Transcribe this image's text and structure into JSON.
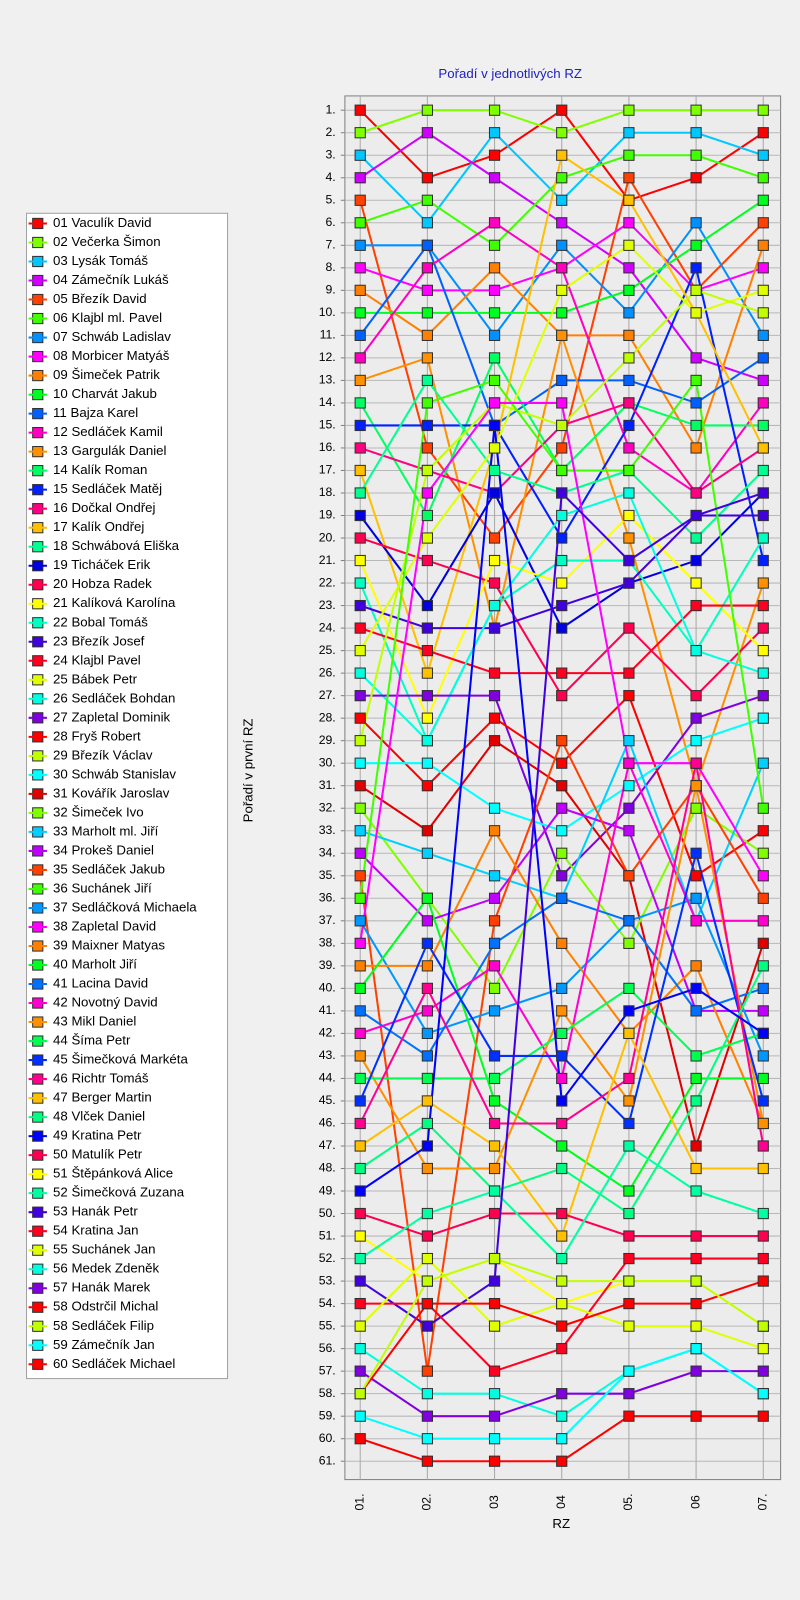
{
  "chart_data": {
    "type": "line",
    "title": "Pořadí v jednotlivých RZ",
    "x_label": "RZ",
    "y_label": "Pořadí v první RZ",
    "y_inverted": true,
    "grid": true,
    "legend": "left",
    "categories": [
      "01.",
      "02.",
      "03",
      "04",
      "05.",
      "06",
      "07."
    ],
    "ylim": [
      1,
      61
    ],
    "yticks": [
      {
        "value": 1,
        "label": "1."
      },
      {
        "value": 2,
        "label": "2."
      },
      {
        "value": 3,
        "label": "3."
      },
      {
        "value": 4,
        "label": "4."
      },
      {
        "value": 5,
        "label": "5."
      },
      {
        "value": 6,
        "label": "6."
      },
      {
        "value": 7,
        "label": "7."
      },
      {
        "value": 8,
        "label": "8."
      },
      {
        "value": 9,
        "label": "9."
      },
      {
        "value": 10,
        "label": "10."
      },
      {
        "value": 11,
        "label": "11."
      },
      {
        "value": 12,
        "label": "12."
      },
      {
        "value": 13,
        "label": "13."
      },
      {
        "value": 14,
        "label": "14."
      },
      {
        "value": 15,
        "label": "15."
      },
      {
        "value": 16,
        "label": "16."
      },
      {
        "value": 17,
        "label": "17."
      },
      {
        "value": 18,
        "label": "18."
      },
      {
        "value": 19,
        "label": "19."
      },
      {
        "value": 20,
        "label": "20."
      },
      {
        "value": 21,
        "label": "21."
      },
      {
        "value": 22,
        "label": "22."
      },
      {
        "value": 23,
        "label": "23."
      },
      {
        "value": 24,
        "label": "24."
      },
      {
        "value": 25,
        "label": "25."
      },
      {
        "value": 26,
        "label": "26."
      },
      {
        "value": 27,
        "label": "27."
      },
      {
        "value": 28,
        "label": "28."
      },
      {
        "value": 29,
        "label": "29."
      },
      {
        "value": 30,
        "label": "30."
      },
      {
        "value": 31,
        "label": "31."
      },
      {
        "value": 32,
        "label": "32."
      },
      {
        "value": 33,
        "label": "33."
      },
      {
        "value": 34,
        "label": "34."
      },
      {
        "value": 35,
        "label": "35."
      },
      {
        "value": 36,
        "label": "36."
      },
      {
        "value": 37,
        "label": "37."
      },
      {
        "value": 38,
        "label": "38."
      },
      {
        "value": 39,
        "label": "39."
      },
      {
        "value": 40,
        "label": "40."
      },
      {
        "value": 41,
        "label": "41."
      },
      {
        "value": 42,
        "label": "42."
      },
      {
        "value": 43,
        "label": "43."
      },
      {
        "value": 44,
        "label": "44."
      },
      {
        "value": 45,
        "label": "45."
      },
      {
        "value": 46,
        "label": "46."
      },
      {
        "value": 47,
        "label": "47."
      },
      {
        "value": 48,
        "label": "48."
      },
      {
        "value": 49,
        "label": "49."
      },
      {
        "value": 50,
        "label": "50."
      },
      {
        "value": 51,
        "label": "51."
      },
      {
        "value": 52,
        "label": "52."
      },
      {
        "value": 53,
        "label": "53."
      },
      {
        "value": 54,
        "label": "54."
      },
      {
        "value": 55,
        "label": "55."
      },
      {
        "value": 56,
        "label": "56."
      },
      {
        "value": 57,
        "label": "57."
      },
      {
        "value": 58,
        "label": "58."
      },
      {
        "value": 59,
        "label": "59."
      },
      {
        "value": 60,
        "label": "60."
      },
      {
        "value": 61,
        "label": "61."
      }
    ],
    "series": [
      {
        "name": "01 Vaculík David",
        "color": "#ff0000",
        "values": [
          1,
          4,
          3,
          1,
          5,
          4,
          2
        ]
      },
      {
        "name": "02 Večerka Šimon",
        "color": "#80ff00",
        "values": [
          2,
          1,
          1,
          2,
          1,
          1,
          1
        ]
      },
      {
        "name": "03 Lysák Tomáš",
        "color": "#00c8ff",
        "values": [
          3,
          6,
          2,
          5,
          2,
          2,
          3
        ]
      },
      {
        "name": "04 Zámečník Lukáš",
        "color": "#d000ff",
        "values": [
          4,
          2,
          4,
          6,
          8,
          12,
          13
        ]
      },
      {
        "name": "05 Březík David",
        "color": "#ff4000",
        "values": [
          5,
          16,
          20,
          16,
          4,
          9,
          6
        ]
      },
      {
        "name": "06 Klajbl ml. Pavel",
        "color": "#40ff00",
        "values": [
          6,
          5,
          7,
          4,
          3,
          3,
          4
        ]
      },
      {
        "name": "07 Schwáb Ladislav",
        "color": "#0090ff",
        "values": [
          7,
          7,
          11,
          7,
          10,
          6,
          11
        ]
      },
      {
        "name": "08 Morbicer Matyáš",
        "color": "#ff00ff",
        "values": [
          8,
          9,
          9,
          8,
          6,
          9,
          8
        ]
      },
      {
        "name": "09 Šimeček Patrik",
        "color": "#ff8000",
        "values": [
          9,
          11,
          8,
          11,
          11,
          16,
          7
        ]
      },
      {
        "name": "10 Charvát Jakub",
        "color": "#00ff20",
        "values": [
          10,
          10,
          10,
          10,
          9,
          7,
          5
        ]
      },
      {
        "name": "11 Bajza Karel",
        "color": "#0060ff",
        "values": [
          11,
          7,
          15,
          13,
          13,
          14,
          12
        ]
      },
      {
        "name": "12 Sedláček Kamil",
        "color": "#ff00c0",
        "values": [
          12,
          8,
          6,
          8,
          16,
          18,
          14
        ]
      },
      {
        "name": "13 Gargulák Daniel",
        "color": "#ff9000",
        "values": [
          13,
          12,
          24,
          11,
          20,
          31,
          22
        ]
      },
      {
        "name": "14 Kalík Roman",
        "color": "#00ff60",
        "values": [
          14,
          19,
          12,
          17,
          14,
          15,
          15
        ]
      },
      {
        "name": "15 Sedláček Matěj",
        "color": "#0020ff",
        "values": [
          15,
          15,
          15,
          20,
          15,
          8,
          21
        ]
      },
      {
        "name": "16 Dočkal Ondřej",
        "color": "#ff0080",
        "values": [
          16,
          17,
          18,
          15,
          14,
          18,
          16
        ]
      },
      {
        "name": "17 Kalík Ondřej",
        "color": "#ffc000",
        "values": [
          17,
          26,
          16,
          3,
          5,
          10,
          16
        ]
      },
      {
        "name": "18 Schwábová Eliška",
        "color": "#00ff90",
        "values": [
          18,
          13,
          17,
          18,
          17,
          20,
          17
        ]
      },
      {
        "name": "19 Ticháček Erik",
        "color": "#0000e0",
        "values": [
          19,
          23,
          18,
          24,
          22,
          21,
          18
        ]
      },
      {
        "name": "20 Hobza Radek",
        "color": "#ff0050",
        "values": [
          20,
          21,
          22,
          27,
          24,
          27,
          24
        ]
      },
      {
        "name": "21 Kalíková Karolína",
        "color": "#ffff00",
        "values": [
          21,
          28,
          21,
          22,
          19,
          22,
          25
        ]
      },
      {
        "name": "22 Bobal Tomáš",
        "color": "#00ffc0",
        "values": [
          22,
          29,
          23,
          21,
          21,
          25,
          20
        ]
      },
      {
        "name": "23 Březík Josef",
        "color": "#4000e0",
        "values": [
          23,
          24,
          24,
          23,
          22,
          19,
          19
        ]
      },
      {
        "name": "24 Klajbl Pavel",
        "color": "#ff0020",
        "values": [
          24,
          25,
          26,
          26,
          26,
          23,
          23
        ]
      },
      {
        "name": "25 Bábek Petr",
        "color": "#e0ff00",
        "values": [
          25,
          20,
          16,
          9,
          7,
          10,
          9
        ]
      },
      {
        "name": "26 Sedláček Bohdan",
        "color": "#00ffe0",
        "values": [
          26,
          29,
          23,
          19,
          18,
          25,
          26
        ]
      },
      {
        "name": "27 Zapletal Dominik",
        "color": "#8000e0",
        "values": [
          27,
          27,
          27,
          35,
          32,
          28,
          27
        ]
      },
      {
        "name": "28 Fryš Robert",
        "color": "#ff0000",
        "values": [
          28,
          31,
          28,
          30,
          27,
          35,
          33
        ]
      },
      {
        "name": "29 Březík Václav",
        "color": "#c0ff00",
        "values": [
          29,
          17,
          14,
          15,
          12,
          9,
          10
        ]
      },
      {
        "name": "30 Schwáb Stanislav",
        "color": "#00ffff",
        "values": [
          30,
          30,
          32,
          33,
          31,
          29,
          28
        ]
      },
      {
        "name": "31 Kovářík Jaroslav",
        "color": "#e00000",
        "values": [
          31,
          33,
          29,
          31,
          35,
          47,
          38
        ]
      },
      {
        "name": "32 Šimeček Ivo",
        "color": "#80ff00",
        "values": [
          32,
          36,
          40,
          34,
          38,
          32,
          34
        ]
      },
      {
        "name": "33 Marholt ml. Jiří",
        "color": "#00d0ff",
        "values": [
          33,
          34,
          35,
          36,
          29,
          37,
          30
        ]
      },
      {
        "name": "34 Prokeš Daniel",
        "color": "#c000ff",
        "values": [
          34,
          37,
          36,
          32,
          33,
          41,
          41
        ]
      },
      {
        "name": "35 Sedláček Jakub",
        "color": "#ff4000",
        "values": [
          35,
          57,
          37,
          29,
          35,
          31,
          36
        ]
      },
      {
        "name": "36 Suchánek Jiří",
        "color": "#40ff00",
        "values": [
          36,
          14,
          13,
          17,
          17,
          13,
          32
        ]
      },
      {
        "name": "37 Sedláčková Michaela",
        "color": "#0098ff",
        "values": [
          37,
          42,
          41,
          40,
          37,
          36,
          43
        ]
      },
      {
        "name": "38 Zapletal David",
        "color": "#ff00ff",
        "values": [
          38,
          18,
          14,
          14,
          30,
          30,
          35
        ]
      },
      {
        "name": "39 Maixner Matyas",
        "color": "#ff8000",
        "values": [
          39,
          39,
          33,
          38,
          42,
          39,
          46
        ]
      },
      {
        "name": "40 Marholt Jiří",
        "color": "#00ff20",
        "values": [
          40,
          36,
          45,
          47,
          49,
          44,
          44
        ]
      },
      {
        "name": "41 Lacina David",
        "color": "#0070ff",
        "values": [
          41,
          43,
          38,
          36,
          37,
          41,
          40
        ]
      },
      {
        "name": "42 Novotný David",
        "color": "#ff00d0",
        "values": [
          42,
          41,
          39,
          44,
          30,
          37,
          37
        ]
      },
      {
        "name": "43 Mikl Daniel",
        "color": "#ff9000",
        "values": [
          43,
          48,
          48,
          41,
          45,
          31,
          46
        ]
      },
      {
        "name": "44 Šíma Petr",
        "color": "#00ff50",
        "values": [
          44,
          44,
          44,
          42,
          40,
          43,
          42
        ]
      },
      {
        "name": "45 Šimečková Markéta",
        "color": "#0030ff",
        "values": [
          45,
          38,
          43,
          43,
          46,
          34,
          45
        ]
      },
      {
        "name": "46 Richtr Tomáš",
        "color": "#ff0090",
        "values": [
          46,
          40,
          46,
          46,
          44,
          30,
          47
        ]
      },
      {
        "name": "47 Berger Martin",
        "color": "#ffc000",
        "values": [
          47,
          45,
          47,
          51,
          42,
          48,
          48
        ]
      },
      {
        "name": "48 Vlček Daniel",
        "color": "#00ff80",
        "values": [
          48,
          46,
          49,
          48,
          50,
          45,
          39
        ]
      },
      {
        "name": "49 Kratina Petr",
        "color": "#0000ff",
        "values": [
          49,
          47,
          15,
          45,
          41,
          40,
          42
        ]
      },
      {
        "name": "50 Matulík Petr",
        "color": "#ff0050",
        "values": [
          50,
          51,
          50,
          50,
          51,
          51,
          51
        ]
      },
      {
        "name": "51 Štěpánková Alice",
        "color": "#ffff00",
        "values": [
          51,
          53,
          52,
          54,
          53,
          53,
          55
        ]
      },
      {
        "name": "52 Šimečková Zuzana",
        "color": "#00ffa0",
        "values": [
          52,
          50,
          49,
          52,
          47,
          49,
          50
        ]
      },
      {
        "name": "53 Hanák Petr",
        "color": "#4000e0",
        "values": [
          53,
          55,
          53,
          18,
          21,
          19,
          18
        ]
      },
      {
        "name": "54 Kratina Jan",
        "color": "#ff0020",
        "values": [
          54,
          54,
          57,
          56,
          52,
          52,
          52
        ]
      },
      {
        "name": "55 Suchánek Jan",
        "color": "#e0ff00",
        "values": [
          55,
          52,
          55,
          54,
          55,
          55,
          56
        ]
      },
      {
        "name": "56 Medek Zdeněk",
        "color": "#00ffe0",
        "values": [
          56,
          58,
          58,
          59,
          57,
          56,
          58
        ]
      },
      {
        "name": "57 Hanák Marek",
        "color": "#8000e0",
        "values": [
          57,
          59,
          59,
          58,
          58,
          57,
          57
        ]
      },
      {
        "name": "58 Odstrčil Michal",
        "color": "#ff0000",
        "values": [
          58,
          54,
          54,
          55,
          54,
          54,
          53
        ]
      },
      {
        "name": "58 Sedláček Filip",
        "color": "#c0ff00",
        "values": [
          58,
          53,
          52,
          53,
          53,
          53,
          55
        ]
      },
      {
        "name": "59 Zámečník Jan",
        "color": "#00ffff",
        "values": [
          59,
          60,
          60,
          60,
          57,
          56,
          58
        ]
      },
      {
        "name": "60 Sedláček Michael",
        "color": "#ff0000",
        "values": [
          60,
          61,
          61,
          61,
          59,
          59,
          59
        ]
      }
    ]
  }
}
